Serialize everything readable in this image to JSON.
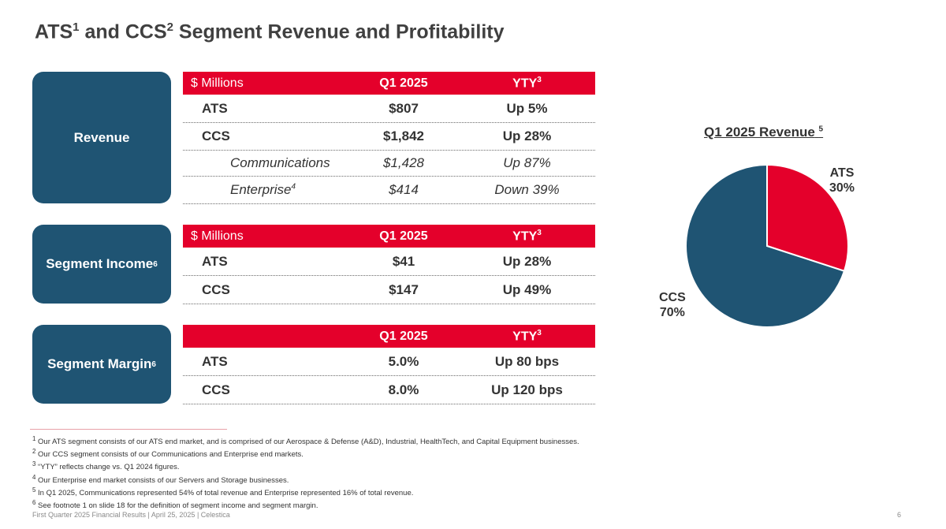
{
  "title": {
    "part1": "ATS",
    "sup1": "1",
    "part2": " and CCS",
    "sup2": "2",
    "part3": " Segment Revenue and Profitability"
  },
  "segments": {
    "revenue": {
      "label": "Revenue"
    },
    "income": {
      "label": "Segment Income",
      "sup": "6"
    },
    "margin": {
      "label": "Segment Margin",
      "sup": "6"
    }
  },
  "tables": {
    "revenue": {
      "headers": {
        "unit": "$ Millions",
        "period": "Q1 2025",
        "change": "YTY",
        "change_sup": "3"
      },
      "rows": [
        {
          "name": "ATS",
          "value": "$807",
          "change": "Up 5%"
        },
        {
          "name": "CCS",
          "value": "$1,842",
          "change": "Up 28%"
        },
        {
          "name": "Communications",
          "value": "$1,428",
          "change": "Up 87%"
        },
        {
          "name": "Enterprise",
          "name_sup": "4",
          "value": "$414",
          "change": "Down 39%"
        }
      ]
    },
    "income": {
      "headers": {
        "unit": "$ Millions",
        "period": "Q1 2025",
        "change": "YTY",
        "change_sup": "3"
      },
      "rows": [
        {
          "name": "ATS",
          "value": "$41",
          "change": "Up 28%"
        },
        {
          "name": "CCS",
          "value": "$147",
          "change": "Up 49%"
        }
      ]
    },
    "margin": {
      "headers": {
        "unit": "",
        "period": "Q1 2025",
        "change": "YTY",
        "change_sup": "3"
      },
      "rows": [
        {
          "name": "ATS",
          "value": "5.0%",
          "change": "Up 80 bps"
        },
        {
          "name": "CCS",
          "value": "8.0%",
          "change": "Up 120 bps"
        }
      ]
    }
  },
  "chart_data": {
    "type": "pie",
    "title": "Q1 2025 Revenue",
    "title_sup": "5",
    "slices": [
      {
        "name": "ATS",
        "value": 30,
        "label": "30%",
        "color": "#e4002b"
      },
      {
        "name": "CCS",
        "value": 70,
        "label": "70%",
        "color": "#1f5473"
      }
    ]
  },
  "footnotes": [
    {
      "num": "1",
      "text": " Our ATS segment consists of our ATS end market, and is comprised of our Aerospace & Defense (A&D), Industrial, HealthTech, and Capital Equipment businesses."
    },
    {
      "num": "2",
      "text": " Our CCS segment consists of our Communications and Enterprise end markets."
    },
    {
      "num": "3",
      "text": " “YTY” reflects change vs. Q1 2024 figures."
    },
    {
      "num": "4",
      "text": " Our Enterprise end market consists of our Servers and Storage businesses."
    },
    {
      "num": "5",
      "text": " In Q1 2025, Communications represented 54% of total revenue and Enterprise represented 16% of total revenue."
    },
    {
      "num": "6",
      "text": " See footnote 1 on slide 18 for the definition of segment income and segment margin."
    }
  ],
  "footer": {
    "left": "First Quarter 2025 Financial Results | April 25, 2025 | Celestica",
    "page": "6"
  },
  "colors": {
    "accent_red": "#e4002b",
    "brand_blue": "#1f5473"
  }
}
